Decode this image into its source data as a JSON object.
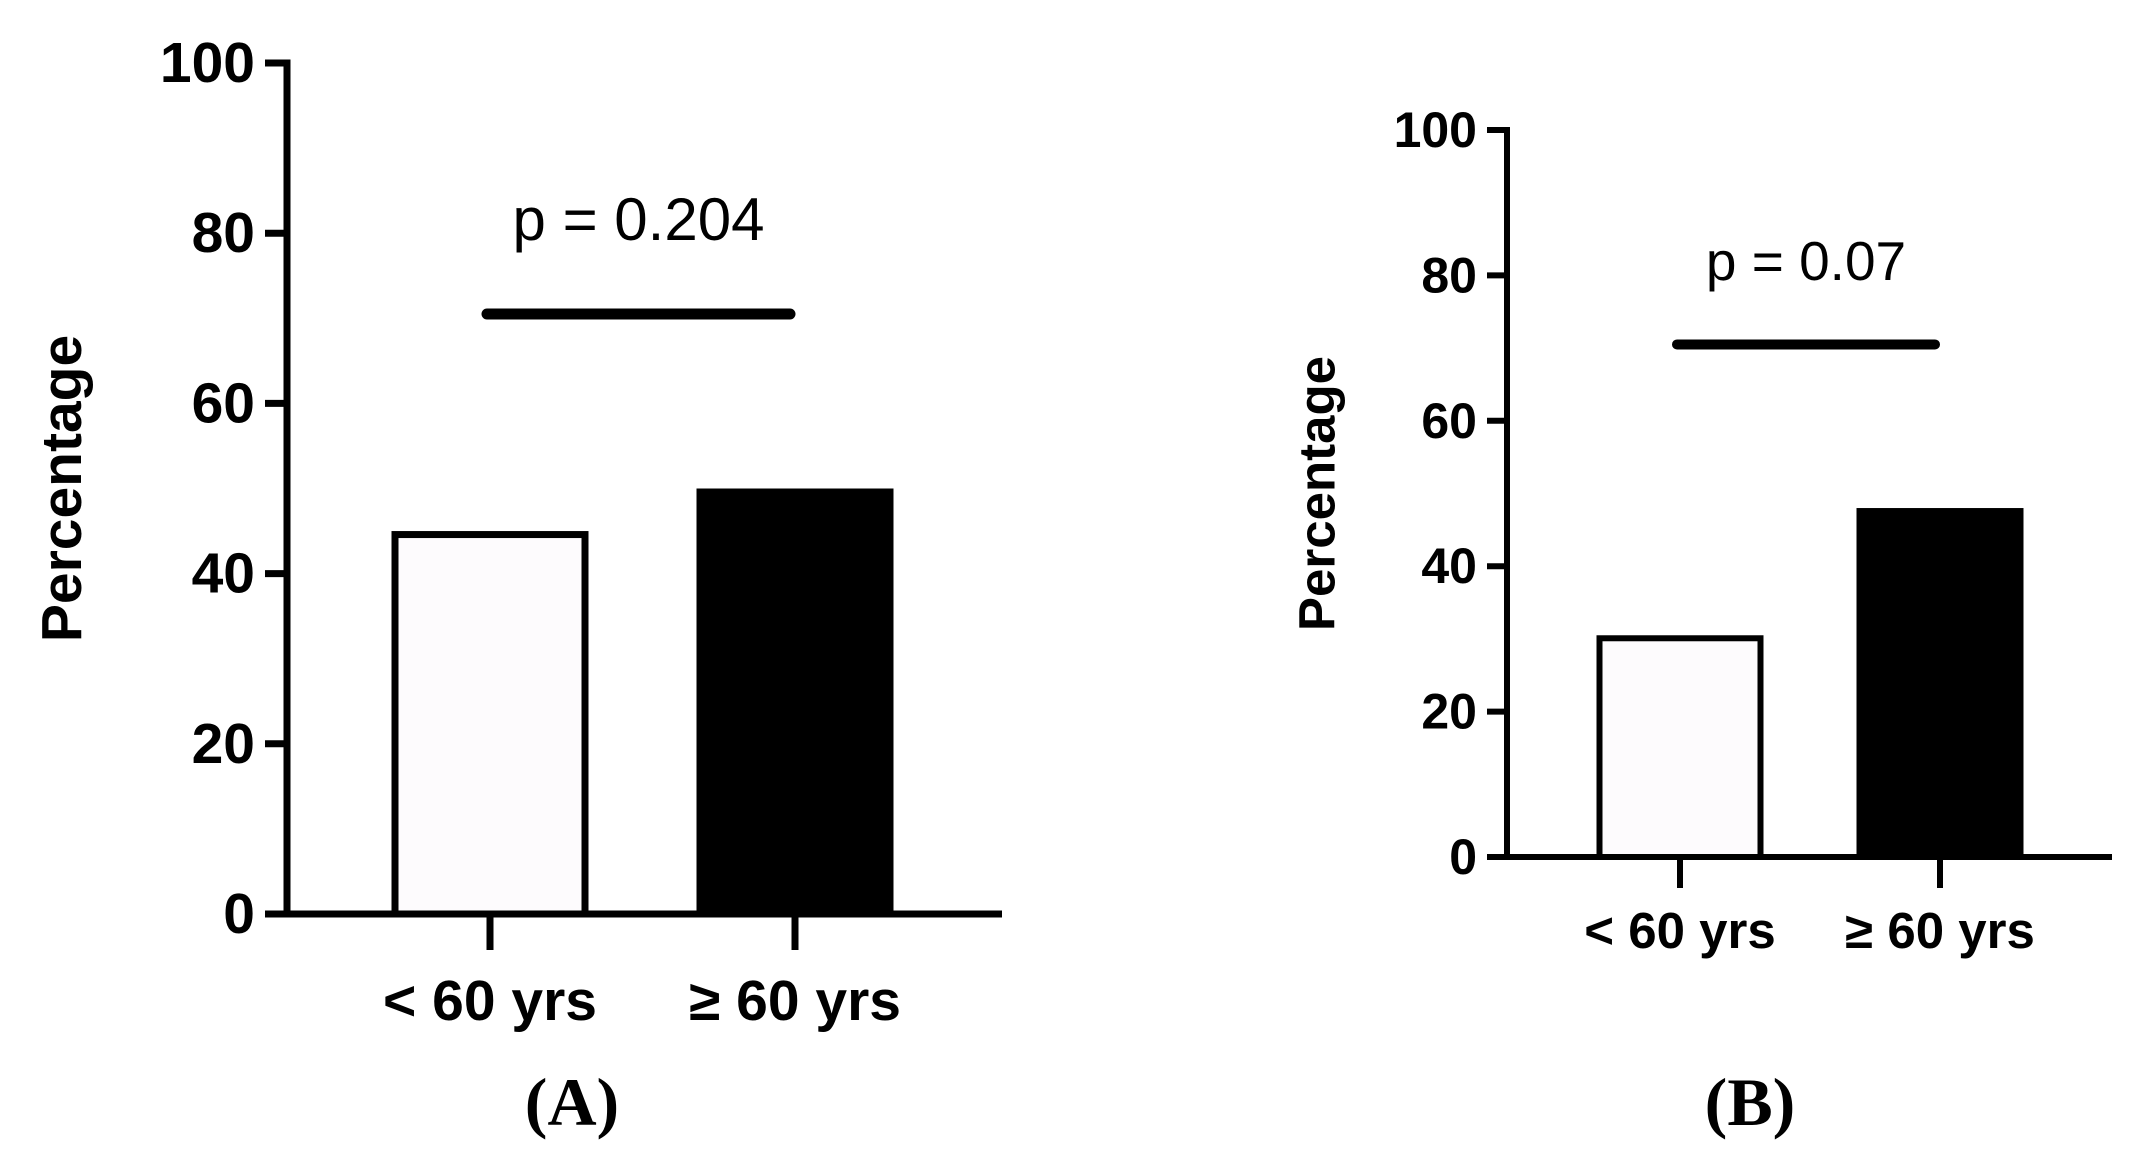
{
  "chart_data": [
    {
      "type": "bar",
      "panel_label": "(A)",
      "categories": [
        "< 60 yrs",
        "≥ 60 yrs"
      ],
      "values": [
        45,
        50
      ],
      "bar_styles": [
        "open",
        "filled"
      ],
      "ylabel": "Percentage",
      "ylim": [
        0,
        100
      ],
      "yticks": [
        0,
        20,
        40,
        60,
        80,
        100
      ],
      "annotation": {
        "text": "p = 0.204",
        "bracket_y": 70.5
      }
    },
    {
      "type": "bar",
      "panel_label": "(B)",
      "categories": [
        "< 60 yrs",
        "≥ 60 yrs"
      ],
      "values": [
        30.5,
        48
      ],
      "bar_styles": [
        "open",
        "filled"
      ],
      "ylabel": "Percentage",
      "ylim": [
        0,
        100
      ],
      "yticks": [
        0,
        20,
        40,
        60,
        80,
        100
      ],
      "annotation": {
        "text": "p = 0.07",
        "bracket_y": 70.5
      }
    }
  ],
  "colors": {
    "ink": "#000000",
    "open_bar_fill": "#fdfbfd",
    "background": "#ffffff"
  }
}
